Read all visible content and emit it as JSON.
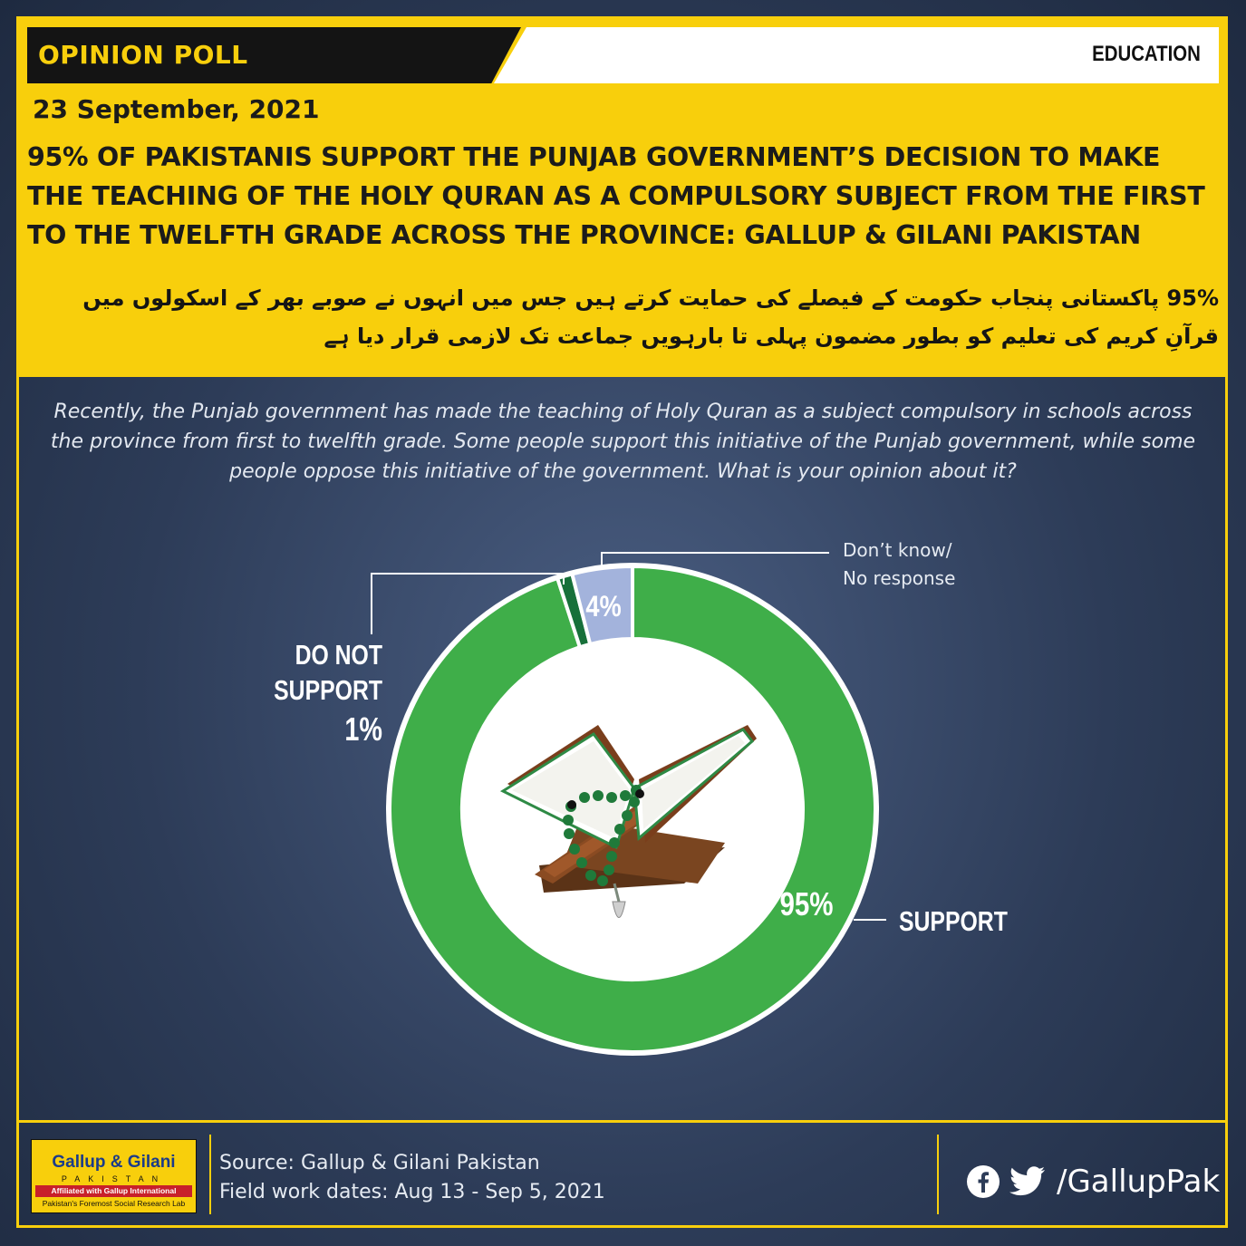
{
  "header": {
    "poll_label": "OPINION POLL",
    "category": "EDUCATION",
    "date": "23 September, 2021",
    "headline": "95% OF PAKISTANIS SUPPORT THE PUNJAB GOVERNMENT’S DECISION TO MAKE THE TEACHING OF THE HOLY QURAN AS A COMPULSORY SUBJECT FROM THE FIRST TO THE TWELFTH GRADE ACROSS THE PROVINCE: GALLUP & GILANI PAKISTAN",
    "urdu_headline": "95% پاکستانی پنجاب حکومت کے فیصلے کی حمایت کرتے ہیں جس میں انہوں نے صوبے بھر کے اسکولوں میں قرآنِ کریم کی تعلیم کو بطور مضمون پہلی تا بارہویں جماعت تک لازمی قرار دیا ہے"
  },
  "question": "Recently, the Punjab government has made the teaching of Holy Quran as a subject compulsory in schools across the province from first to twelfth grade. Some people support this initiative of the Punjab government, while some people oppose this initiative of the government. What is your opinion about it?",
  "chart_data": {
    "type": "pie",
    "variant": "donut",
    "slices": [
      {
        "label": "SUPPORT",
        "value": 95,
        "value_label": "95%",
        "color": "#3fae49"
      },
      {
        "label": "DO NOT SUPPORT",
        "value": 1,
        "value_label": "1%",
        "color": "#17703a"
      },
      {
        "label": "Don’t know/ No response",
        "value": 4,
        "value_label": "4%",
        "color": "#a3b3dc"
      }
    ],
    "labels": {
      "support": "SUPPORT",
      "not_support_line1": "DO NOT",
      "not_support_line2": "SUPPORT",
      "dont_know_line1": "Don’t know/",
      "dont_know_line2": "No response"
    }
  },
  "footer": {
    "source": "Source: Gallup & Gilani Pakistan",
    "fieldwork": "Field work dates:  Aug 13 - Sep 5, 2021",
    "handle": "/GallupPak",
    "logo": {
      "name": "Gallup & Gilani",
      "country": "PAKISTAN",
      "affiliation": "Affiliated with Gallup International",
      "tagline": "Pakistan's Foremost Social Research Lab"
    }
  },
  "icons": [
    "facebook-icon",
    "twitter-icon",
    "quran-illustration"
  ],
  "colors": {
    "accent": "#f8cf0c",
    "background": "#2d3c58",
    "support": "#3fae49",
    "not_support": "#17703a",
    "dont_know": "#a3b3dc"
  }
}
